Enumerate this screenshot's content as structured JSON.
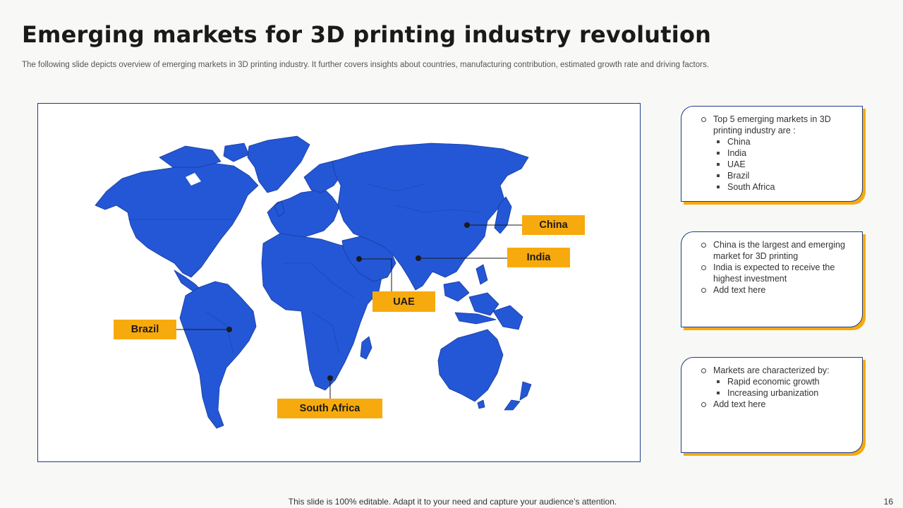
{
  "slide": {
    "title": "Emerging markets for 3D printing industry revolution",
    "subtitle": "The following slide depicts overview of emerging markets in 3D printing industry. It further covers insights about countries, manufacturing contribution, estimated growth rate and driving factors.",
    "footer": "This slide is 100% editable. Adapt it to your need and capture your audience’s attention.",
    "page_number": "16"
  },
  "map": {
    "land_color": "#2457d6",
    "label_color": "#f7aa0e",
    "labels": {
      "china": "China",
      "india": "India",
      "uae": "UAE",
      "brazil": "Brazil",
      "south_africa": "South Africa"
    }
  },
  "cards": {
    "card1": {
      "intro": "Top 5 emerging markets in 3D printing industry are :",
      "items": [
        "China",
        "India",
        "UAE",
        "Brazil",
        "South Africa"
      ]
    },
    "card2": {
      "items": [
        "China is the largest and emerging market for 3D printing",
        "India is expected to receive the highest investment",
        "Add text here"
      ]
    },
    "card3": {
      "intro": "Markets are characterized by:",
      "subitems": [
        "Rapid economic growth",
        "Increasing urbanization"
      ],
      "last": "Add text here"
    }
  }
}
